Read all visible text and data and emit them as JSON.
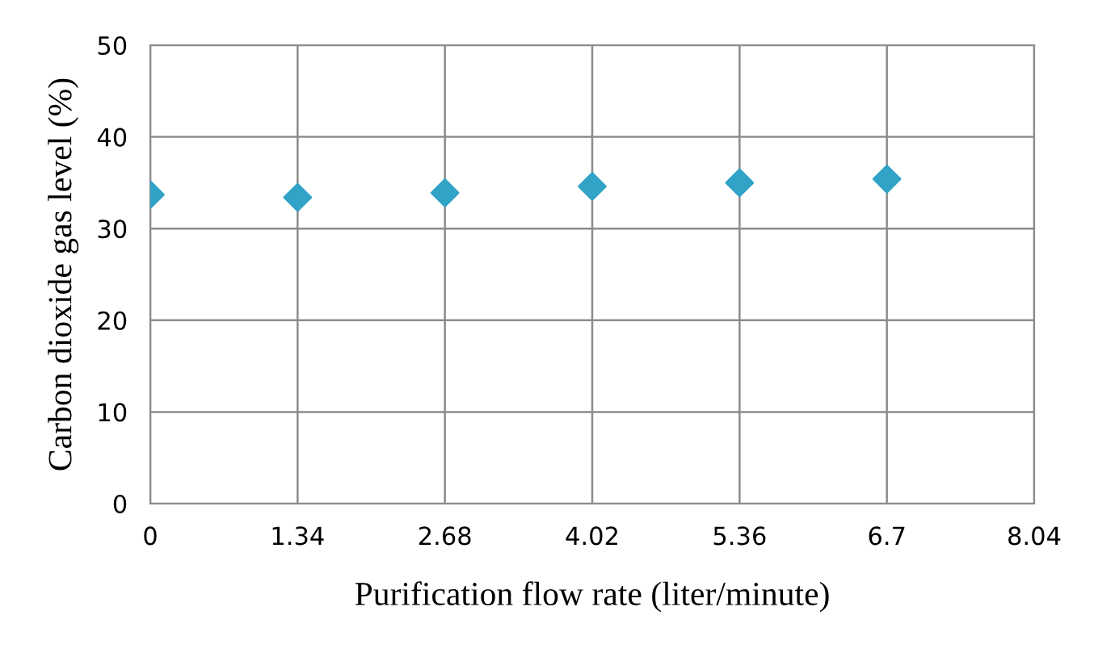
{
  "chart_data": {
    "type": "scatter",
    "xlabel": "Purification flow rate (liter/minute)",
    "ylabel": "Carbon dioxide gas level (%)",
    "x": [
      0,
      1.34,
      2.68,
      4.02,
      5.36,
      6.7
    ],
    "series": [
      {
        "color": "#31a3c6",
        "values": [
          33.7,
          33.4,
          33.9,
          34.6,
          35.0,
          35.4
        ]
      }
    ],
    "xlim": [
      0,
      8.04
    ],
    "xticks": [
      0,
      1.34,
      2.68,
      4.02,
      5.36,
      6.7,
      8.04
    ],
    "ylim": [
      0,
      50
    ],
    "yticks": [
      0,
      10,
      20,
      30,
      40,
      50
    ],
    "grid": true,
    "marker": "diamond",
    "legend": false
  }
}
